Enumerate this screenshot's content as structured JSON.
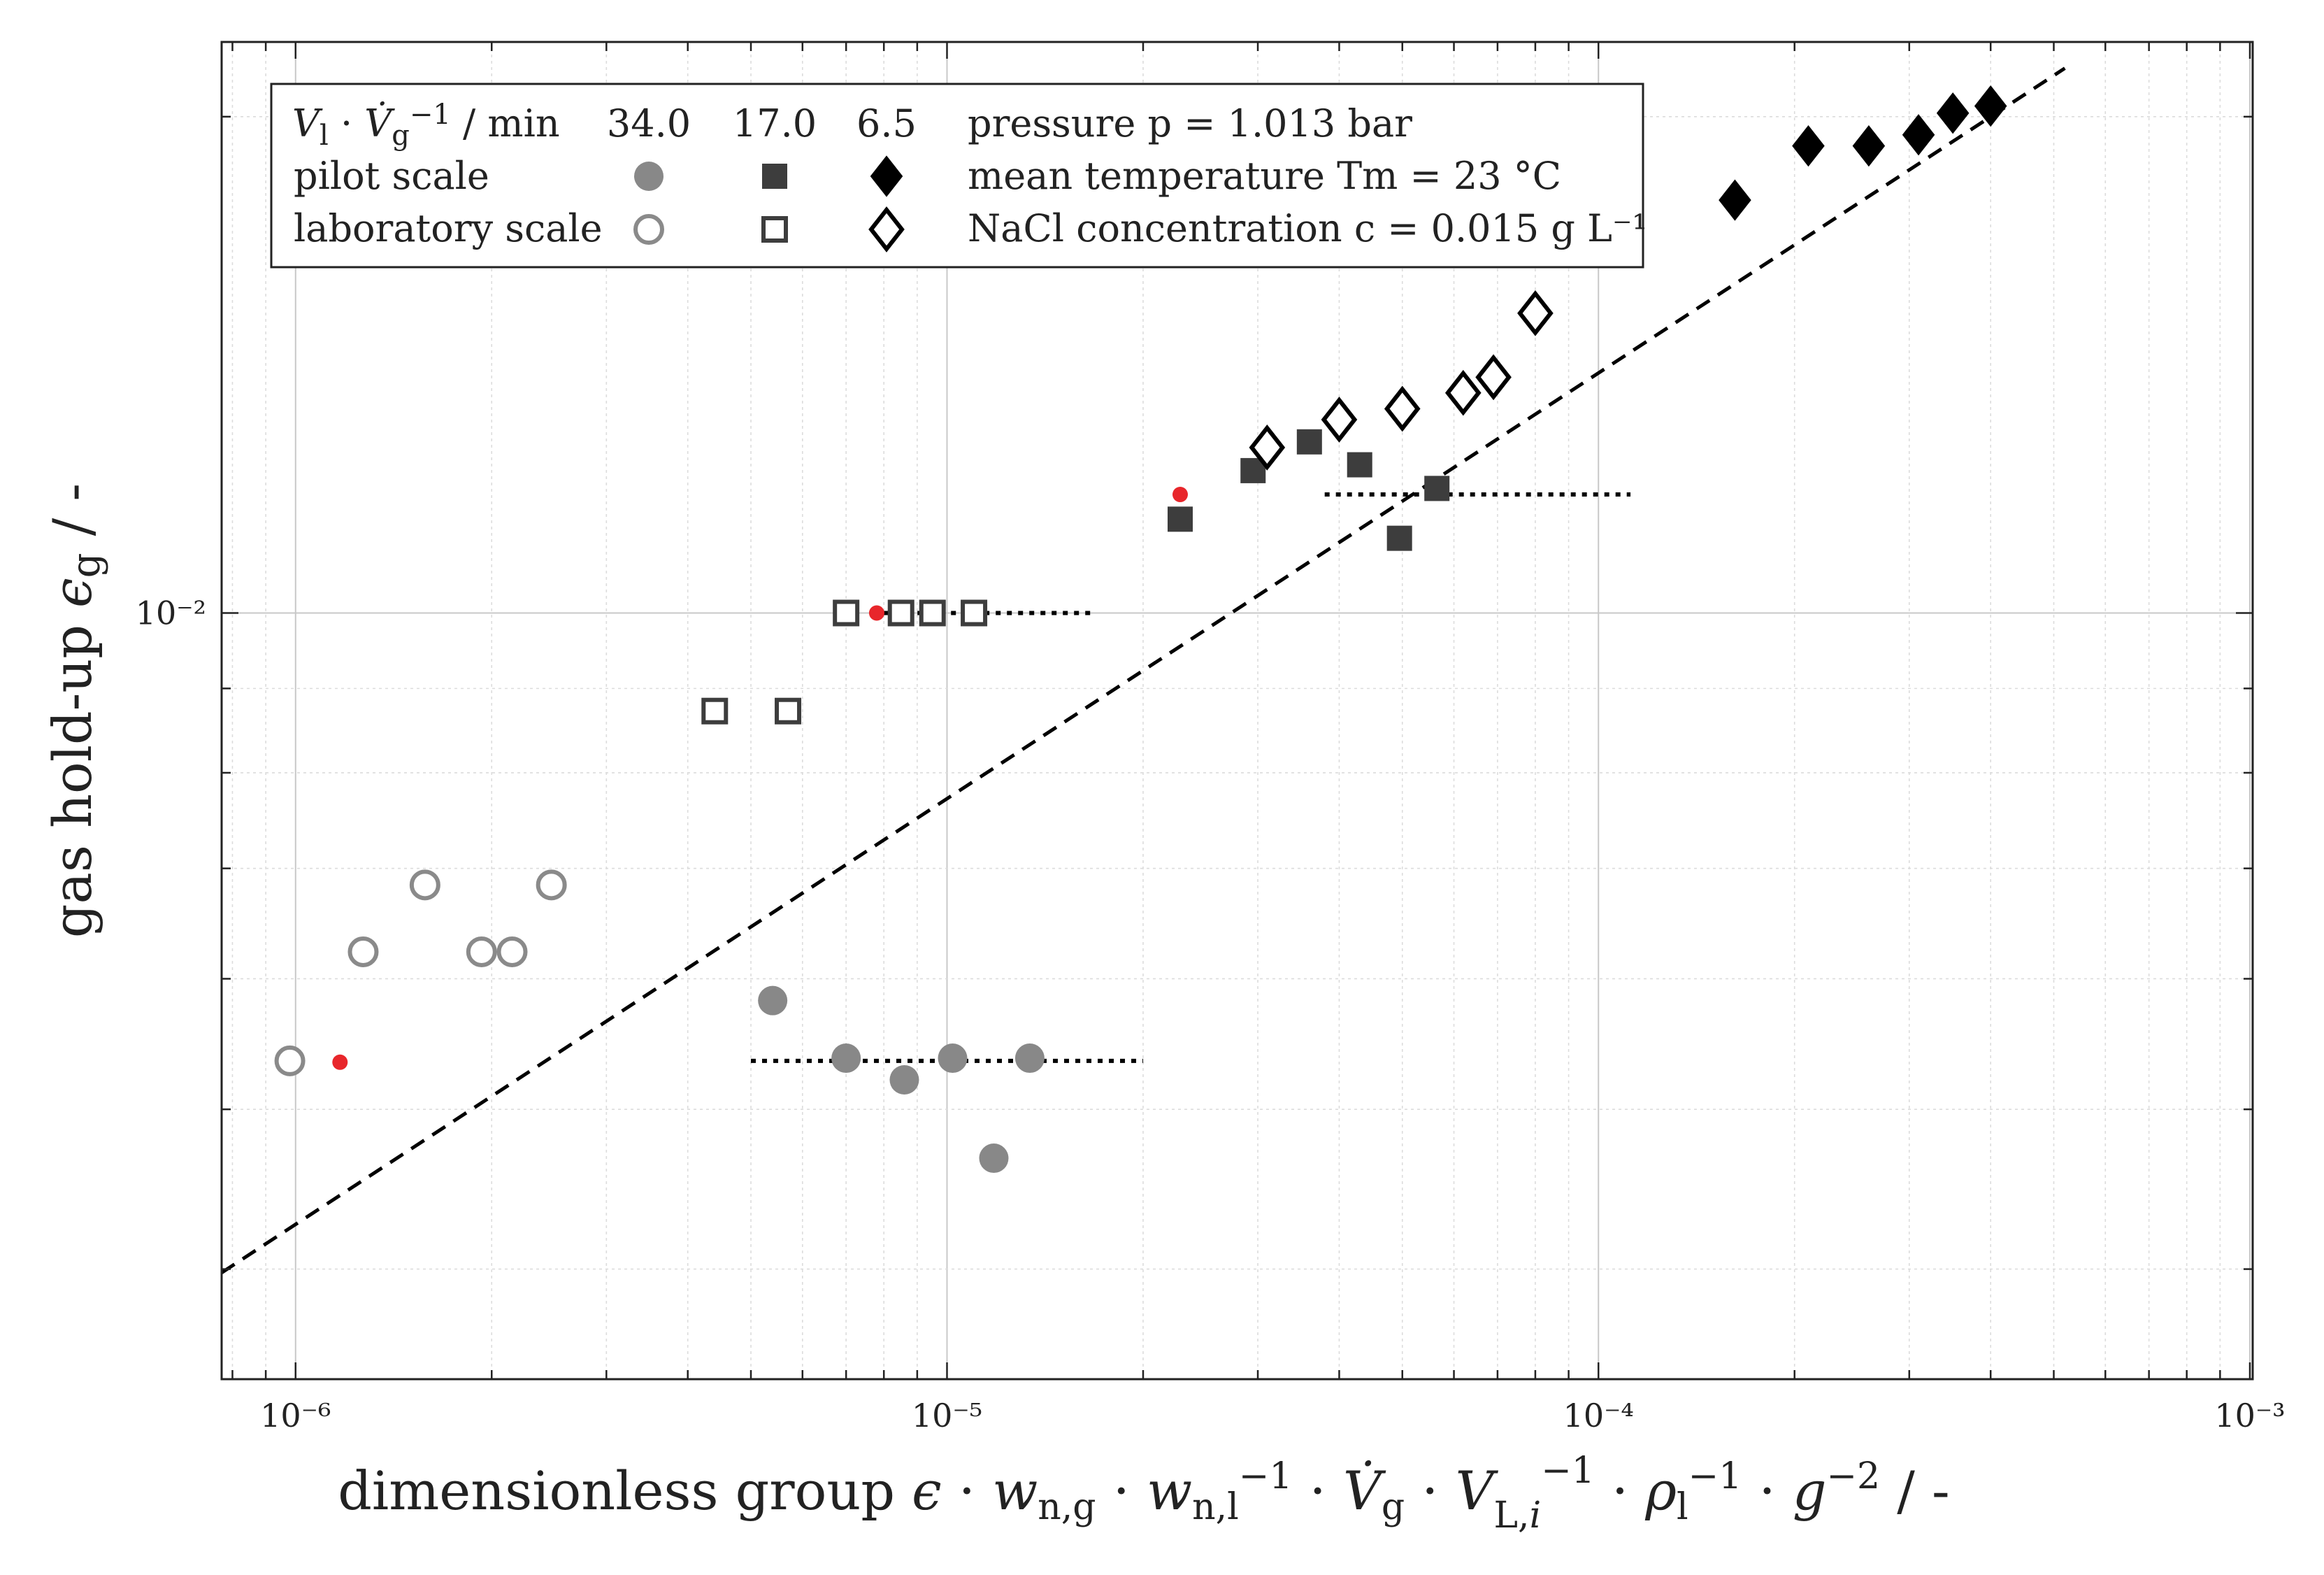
{
  "chart_data": {
    "type": "scatter",
    "x_scale": "log",
    "y_scale": "log",
    "xlim": [
      7.7e-07,
      0.00101
    ],
    "ylim": [
      0.00343,
      0.0222
    ],
    "grid": true,
    "xlabel": "dimensionless group ϵ · w_n,g · w_n,l^−1 · V̇g · V_L,i^−1 · ρ_l^−1 · g^−2 /  -",
    "ylabel": "gas hold-up ϵg  /  -",
    "x_ticks": [
      {
        "value": 1e-06,
        "label": "10⁻⁶"
      },
      {
        "value": 1e-05,
        "label": "10⁻⁵"
      },
      {
        "value": 0.0001,
        "label": "10⁻⁴"
      },
      {
        "value": 0.001,
        "label": "10⁻³"
      }
    ],
    "y_ticks": [
      {
        "value": 0.01,
        "label": "10⁻²"
      }
    ],
    "fit_line": {
      "x": [
        7.7e-07,
        0.00052
      ],
      "y": [
        0.00398,
        0.0214
      ],
      "style": "dashed",
      "color": "#000000"
    },
    "reference_segments": [
      {
        "x": [
          8e-06,
          1.67e-05
        ],
        "y": [
          0.01,
          0.01
        ],
        "style": "dotted",
        "color": "#000000"
      },
      {
        "x": [
          3.8e-05,
          0.000112
        ],
        "y": [
          0.0118,
          0.0118
        ],
        "style": "dotted",
        "color": "#000000"
      },
      {
        "x": [
          5e-06,
          2e-05
        ],
        "y": [
          0.00535,
          0.00535
        ],
        "style": "dotted",
        "color": "#000000"
      }
    ],
    "highlight_points": {
      "color": "#e8262b",
      "x": [
        1.17e-06,
        7.8e-06,
        2.28e-05
      ],
      "y": [
        0.00534,
        0.01,
        0.0118
      ]
    },
    "series": [
      {
        "name": "pilot scale 34.0",
        "marker": "circle",
        "filled": true,
        "color": "#888888",
        "x": [
          5.4e-06,
          7e-06,
          8.6e-06,
          1.02e-05,
          1.18e-05,
          1.34e-05
        ],
        "y": [
          0.00582,
          0.00537,
          0.00521,
          0.00537,
          0.00467,
          0.00537
        ]
      },
      {
        "name": "laboratory scale 34.0",
        "marker": "circle",
        "filled": false,
        "color": "#8a8a8a",
        "x": [
          9.8e-07,
          1.27e-06,
          1.58e-06,
          1.93e-06,
          2.15e-06,
          2.47e-06
        ],
        "y": [
          0.00535,
          0.00623,
          0.00684,
          0.00623,
          0.00623,
          0.00684
        ]
      },
      {
        "name": "pilot scale 17.0",
        "marker": "square",
        "filled": true,
        "color": "#3d3d3d",
        "x": [
          2.28e-05,
          2.95e-05,
          3.6e-05,
          4.3e-05,
          4.95e-05,
          5.65e-05
        ],
        "y": [
          0.0114,
          0.0122,
          0.0127,
          0.0123,
          0.0111,
          0.0119
        ]
      },
      {
        "name": "laboratory scale 17.0",
        "marker": "square",
        "filled": false,
        "color": "#3d3d3d",
        "x": [
          4.4e-06,
          5.7e-06,
          7e-06,
          8.5e-06,
          9.5e-06,
          1.1e-05
        ],
        "y": [
          0.00872,
          0.00872,
          0.01,
          0.01,
          0.01,
          0.01
        ]
      },
      {
        "name": "pilot scale 6.5",
        "marker": "diamond",
        "filled": true,
        "color": "#000000",
        "x": [
          0.000162,
          0.00021,
          0.00026,
          0.00031,
          0.00035,
          0.0004
        ],
        "y": [
          0.0178,
          0.0192,
          0.0192,
          0.0195,
          0.0201,
          0.0203
        ]
      },
      {
        "name": "laboratory scale 6.5",
        "marker": "diamond",
        "filled": false,
        "color": "#000000",
        "x": [
          3.1e-05,
          4e-05,
          5e-05,
          6.2e-05,
          6.9e-05,
          8e-05
        ],
        "y": [
          0.0126,
          0.0131,
          0.0133,
          0.0136,
          0.0139,
          0.0152
        ]
      }
    ],
    "legend": {
      "position": "top-left",
      "header": "V̇l · V̇g⁻¹ / min",
      "columns": [
        "34.0",
        "17.0",
        "6.5"
      ],
      "rows": [
        "pilot scale",
        "laboratory scale"
      ],
      "notes": [
        "pressure p = 1.013 bar",
        "mean temperature Tm = 23 °C",
        "NaCl concentration c = 0.015 g L⁻¹"
      ]
    }
  }
}
